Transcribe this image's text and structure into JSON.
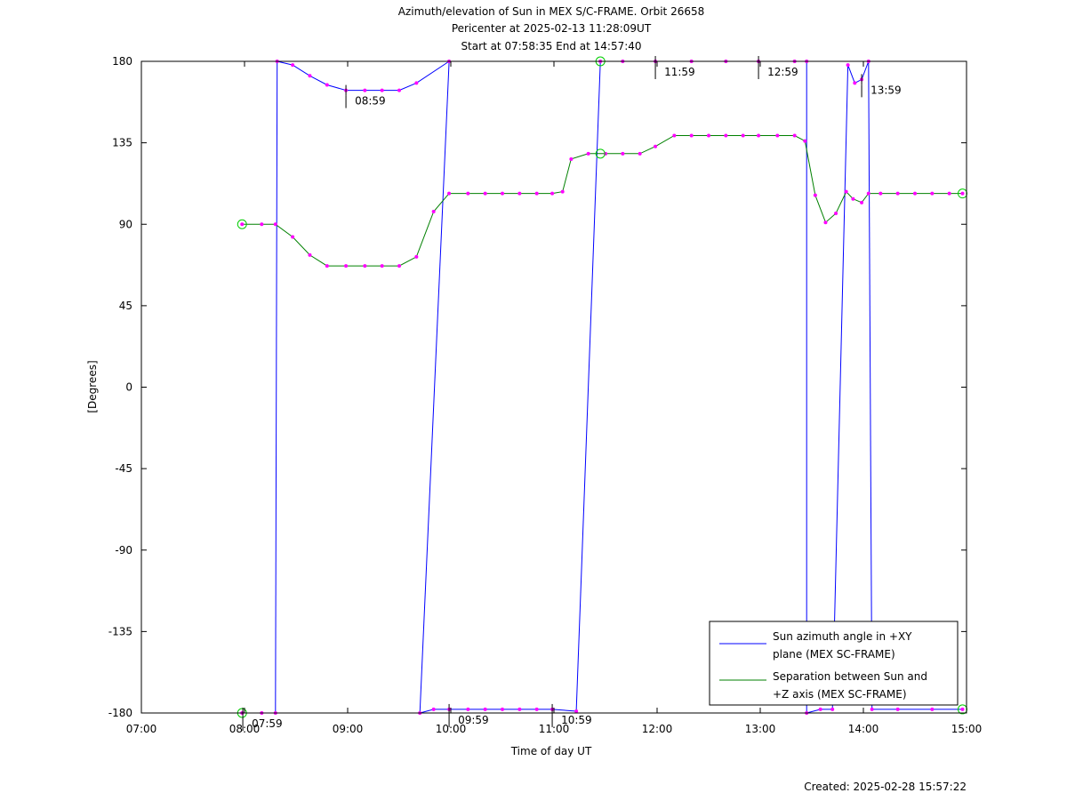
{
  "chart_data": {
    "type": "line",
    "title_lines": [
      "Azimuth/elevation of Sun in MEX S/C-FRAME.  Orbit 26658",
      "Pericenter at 2025-02-13 11:28:09UT",
      "Start at 07:58:35 End at 14:57:40"
    ],
    "xlabel": "Time of day UT",
    "ylabel": "[Degrees]",
    "xlim": [
      "07:00",
      "15:00"
    ],
    "ylim": [
      -180,
      180
    ],
    "x_ticks": [
      "07:00",
      "08:00",
      "09:00",
      "10:00",
      "11:00",
      "12:00",
      "13:00",
      "14:00",
      "15:00"
    ],
    "y_ticks": [
      "180",
      "135",
      "90",
      "45",
      "0",
      "-45",
      "-90",
      "-135",
      "-180"
    ],
    "legend_position": "bottom-right",
    "colors": {
      "azimuth": "#0000ff",
      "separation": "#008000",
      "markers": "#ff00ff",
      "start_end": "#00cc00"
    },
    "series": [
      {
        "name": "Sun azimuth angle in +XY plane (MEX SC-FRAME)",
        "legend_lines": [
          "Sun azimuth angle in +XY",
          "plane (MEX SC-FRAME)"
        ],
        "segments": [
          {
            "x": [
              "07:58:35",
              "08:10",
              "08:18"
            ],
            "y": [
              -180,
              -180,
              -180
            ]
          },
          {
            "x": [
              "08:19",
              "08:28",
              "08:38",
              "08:48",
              "08:59",
              "09:10",
              "09:20",
              "09:30",
              "09:40",
              "09:59"
            ],
            "y": [
              180,
              178,
              172,
              167,
              164,
              164,
              164,
              164,
              168,
              180
            ]
          },
          {
            "x": [
              "09:42",
              "09:50",
              "09:59",
              "10:10",
              "10:20",
              "10:30",
              "10:40",
              "10:50",
              "10:59",
              "11:13"
            ],
            "y": [
              -180,
              -178,
              -178,
              -178,
              -178,
              -178,
              -178,
              -178,
              -178,
              -179
            ]
          },
          {
            "x": [
              "11:27",
              "11:40",
              "11:59",
              "12:20",
              "12:40",
              "12:59",
              "13:20",
              "13:27"
            ],
            "y": [
              180,
              180,
              180,
              180,
              180,
              180,
              180,
              180
            ]
          },
          {
            "x": [
              "13:27",
              "13:35",
              "13:42"
            ],
            "y": [
              -180,
              -178,
              -178
            ]
          },
          {
            "x": [
              "13:51",
              "13:55",
              "13:59",
              "14:03"
            ],
            "y": [
              178,
              168,
              170,
              180
            ]
          },
          {
            "x": [
              "14:05",
              "14:20",
              "14:40",
              "14:57:40"
            ],
            "y": [
              -178,
              -178,
              -178,
              -178
            ]
          }
        ]
      },
      {
        "name": "Separation between Sun and +Z axis (MEX SC-FRAME)",
        "legend_lines": [
          "Separation between Sun and",
          "+Z axis (MEX SC-FRAME)"
        ],
        "x": [
          "07:58:35",
          "08:10",
          "08:18",
          "08:28",
          "08:38",
          "08:48",
          "08:59",
          "09:10",
          "09:20",
          "09:30",
          "09:40",
          "09:50",
          "09:59",
          "10:10",
          "10:20",
          "10:30",
          "10:40",
          "10:50",
          "10:59",
          "11:05",
          "11:10",
          "11:20",
          "11:30",
          "11:40",
          "11:50",
          "11:59",
          "12:10",
          "12:20",
          "12:30",
          "12:40",
          "12:50",
          "12:59",
          "13:10",
          "13:20",
          "13:26",
          "13:32",
          "13:38",
          "13:44",
          "13:50",
          "13:54",
          "13:59",
          "14:03",
          "14:10",
          "14:20",
          "14:30",
          "14:40",
          "14:50",
          "14:57:40"
        ],
        "y": [
          90,
          90,
          90,
          83,
          73,
          67,
          67,
          67,
          67,
          67,
          72,
          97,
          107,
          107,
          107,
          107,
          107,
          107,
          107,
          108,
          126,
          129,
          129,
          129,
          129,
          133,
          139,
          139,
          139,
          139,
          139,
          139,
          139,
          139,
          136,
          106,
          91,
          96,
          108,
          104,
          102,
          107,
          107,
          107,
          107,
          107,
          107,
          107
        ]
      }
    ],
    "annotations": [
      "07:59",
      "08:59",
      "09:59",
      "10:59",
      "11:59",
      "12:59",
      "13:59"
    ],
    "footer": "Created: 2025-02-28 15:57:22"
  }
}
